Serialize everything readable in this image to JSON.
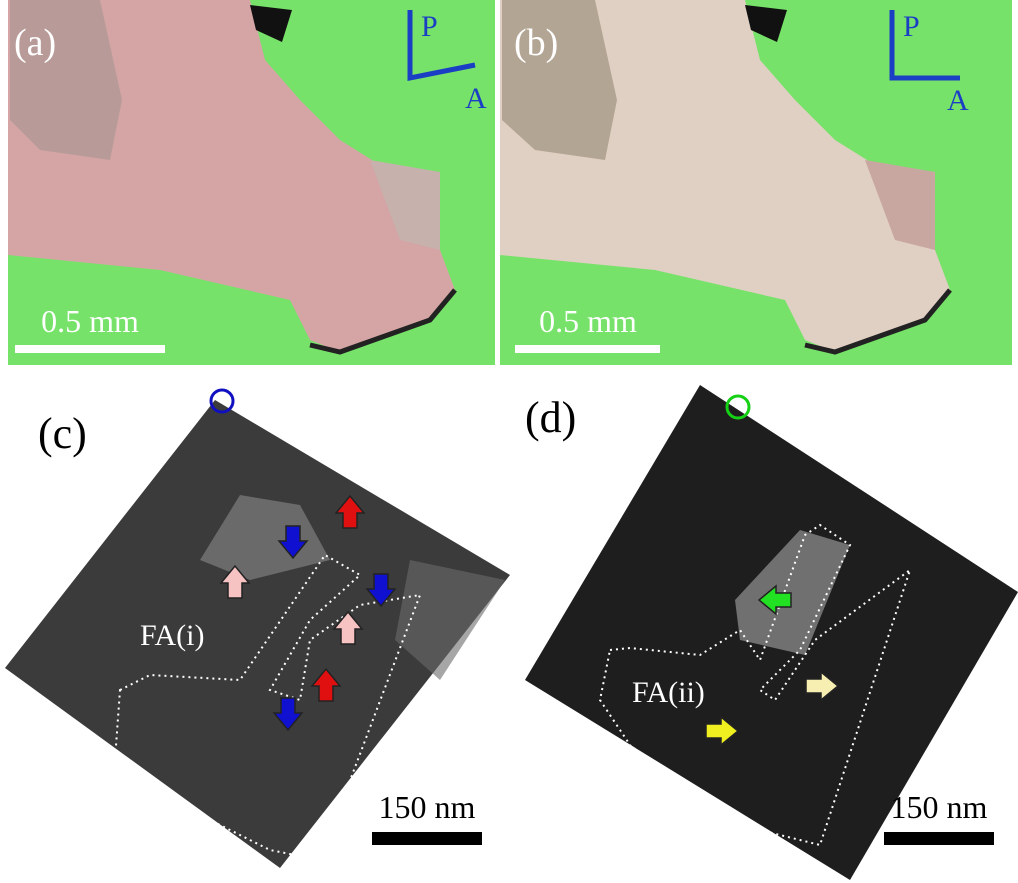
{
  "panels": [
    {
      "label": "(a)",
      "polarizer": "P",
      "analyzer": "A",
      "scale_bar": "0.5 mm"
    },
    {
      "label": "(b)",
      "polarizer": "P",
      "analyzer": "A",
      "scale_bar": "0.5 mm"
    },
    {
      "label": "(c)",
      "region": "FA(i)",
      "scale_bar": "150 nm"
    },
    {
      "label": "(d)",
      "region": "FA(ii)",
      "scale_bar": "150 nm"
    }
  ]
}
